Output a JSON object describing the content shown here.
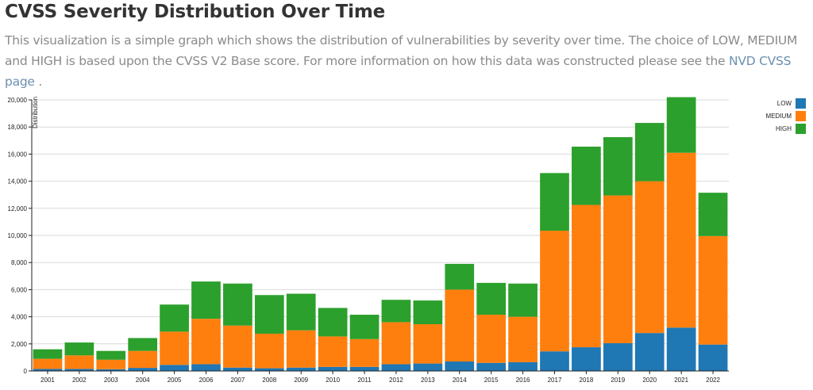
{
  "page": {
    "title": "CVSS Severity Distribution Over Time",
    "description_text": "This visualization is a simple graph which shows the distribution of vulnerabilities by severity over time. The choice of LOW, MEDIUM and HIGH is based upon the CVSS V2 Base score. For more information on how this data was constructed please see the",
    "link_text": "NVD CVSS page",
    "description_end": "."
  },
  "colors": {
    "LOW": "#1f77b4",
    "MEDIUM": "#ff7f0e",
    "HIGH": "#2ca02c",
    "grid": "#d9d9d9",
    "text": "#222222"
  },
  "chart_data": {
    "type": "bar",
    "stacked": true,
    "categories": [
      "2001",
      "2002",
      "2003",
      "2004",
      "2005",
      "2006",
      "2007",
      "2008",
      "2009",
      "2010",
      "2011",
      "2012",
      "2013",
      "2014",
      "2015",
      "2016",
      "2017",
      "2018",
      "2019",
      "2020",
      "2021",
      "2022"
    ],
    "series": [
      {
        "name": "LOW",
        "values": [
          150,
          150,
          130,
          230,
          450,
          500,
          250,
          200,
          250,
          300,
          300,
          500,
          550,
          700,
          600,
          650,
          1450,
          1750,
          2050,
          2800,
          3200,
          1950
        ]
      },
      {
        "name": "MEDIUM",
        "values": [
          750,
          1000,
          700,
          1250,
          2450,
          3350,
          3100,
          2550,
          2750,
          2250,
          2050,
          3100,
          2900,
          5300,
          3550,
          3350,
          8900,
          10500,
          10900,
          11200,
          12900,
          8000
        ]
      },
      {
        "name": "HIGH",
        "values": [
          700,
          950,
          650,
          950,
          2000,
          2750,
          3100,
          2850,
          2700,
          2100,
          1800,
          1650,
          1750,
          1900,
          2350,
          2450,
          4250,
          4300,
          4300,
          4300,
          4100,
          3200
        ]
      }
    ],
    "ylabel": "Distribution",
    "ylim": [
      0,
      20000
    ],
    "yticks": [
      0,
      2000,
      4000,
      6000,
      8000,
      10000,
      12000,
      14000,
      16000,
      18000,
      20000
    ],
    "ytick_labels": [
      "0",
      "2,000",
      "4,000",
      "6,000",
      "8,000",
      "10,000",
      "12,000",
      "14,000",
      "16,000",
      "18,000",
      "20,000"
    ],
    "grid": true,
    "legend": {
      "placement": "top-right",
      "entries": [
        "LOW",
        "MEDIUM",
        "HIGH"
      ]
    }
  }
}
